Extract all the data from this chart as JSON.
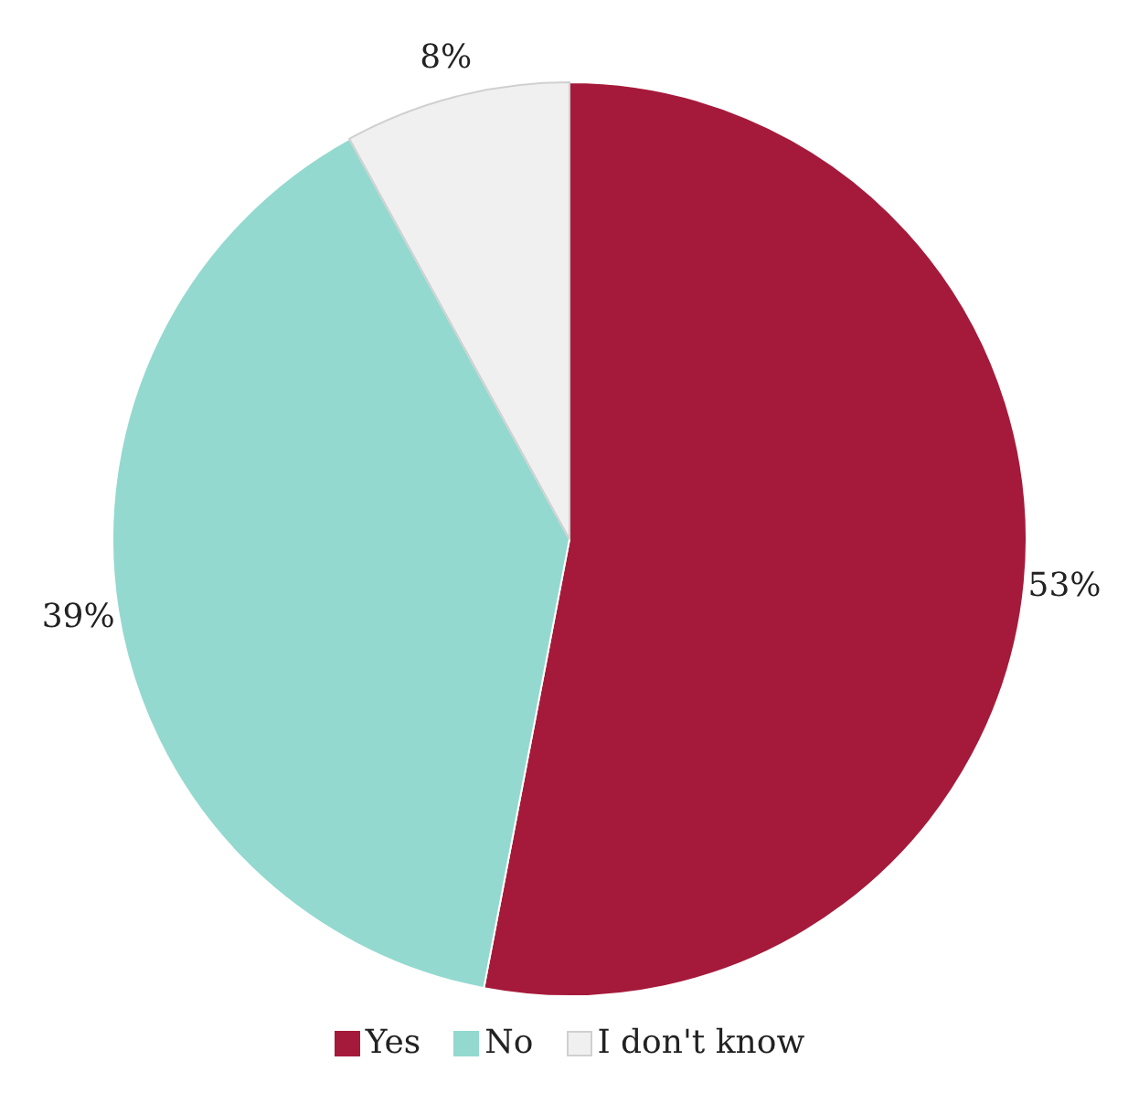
{
  "chart_data": {
    "type": "pie",
    "categories": [
      "Yes",
      "No",
      "I don't know"
    ],
    "values": [
      53,
      39,
      8
    ],
    "colors": [
      "#a51a3a",
      "#93d9cf",
      "#f0f0f0"
    ],
    "value_labels": [
      "53%",
      "39%",
      "8%"
    ],
    "legend": "bottom"
  }
}
